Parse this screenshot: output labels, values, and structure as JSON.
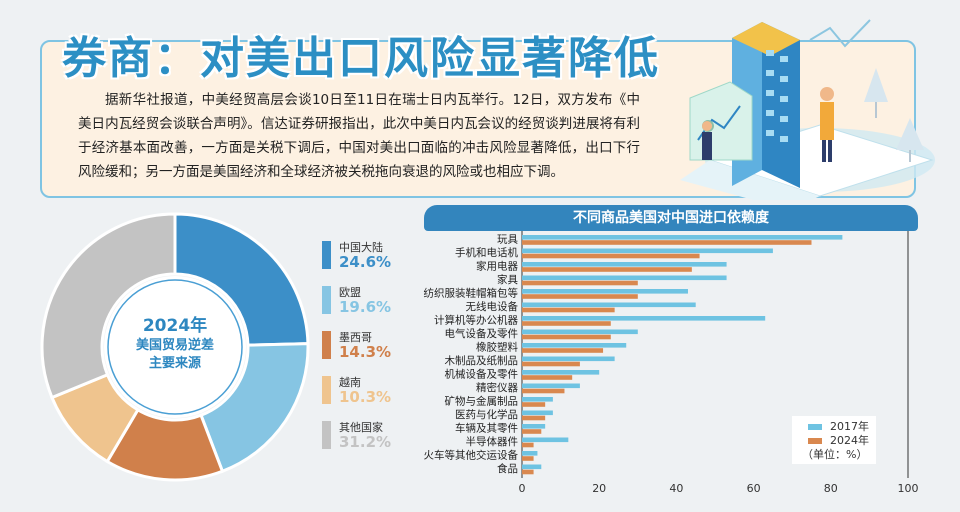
{
  "header": {
    "title": "券商：对美出口风险显著降低",
    "intro": "据新华社报道，中美经贸高层会谈10日至11日在瑞士日内瓦举行。12日，双方发布《中美日内瓦经贸会谈联合声明》。信达证券研报指出，此次中美日内瓦会议的经贸谈判进展将有利于经济基本面改善，一方面是关税下调后，中国对美出口面临的冲击风险显著降低，出口下行风险缓和；另一方面是美国经济和全球经济被关税拖向衰退的风险或也相应下调。"
  },
  "colors": {
    "accent": "#2c8fc4",
    "series_2017": "#6ec3e2",
    "series_2024": "#d9884f"
  },
  "chart_data": [
    {
      "type": "pie",
      "center_label": [
        "2024年",
        "美国贸易逆差",
        "主要来源"
      ],
      "slices": [
        {
          "label": "中国大陆",
          "value": 24.6,
          "display": "24.6%",
          "color": "#3c8fc8"
        },
        {
          "label": "欧盟",
          "value": 19.6,
          "display": "19.6%",
          "color": "#86c5e3"
        },
        {
          "label": "墨西哥",
          "value": 14.3,
          "display": "14.3%",
          "color": "#d0804b"
        },
        {
          "label": "越南",
          "value": 10.3,
          "display": "10.3%",
          "color": "#efc48e"
        },
        {
          "label": "其他国家",
          "value": 31.2,
          "display": "31.2%",
          "color": "#c3c3c3"
        }
      ]
    },
    {
      "type": "bar",
      "orientation": "horizontal",
      "title": "不同商品美国对中国进口依赖度",
      "categories": [
        "玩具",
        "手机和电话机",
        "家用电器",
        "家具",
        "纺织服装鞋帽箱包等",
        "无线电设备",
        "计算机等办公机器",
        "电气设备及零件",
        "橡胶塑料",
        "木制品及纸制品",
        "机械设备及零件",
        "精密仪器",
        "矿物与金属制品",
        "医药与化学品",
        "车辆及其零件",
        "半导体器件",
        "火车等其他交运设备",
        "食品"
      ],
      "series": [
        {
          "name": "2017年",
          "values": [
            83,
            65,
            53,
            53,
            43,
            45,
            63,
            30,
            27,
            24,
            20,
            15,
            8,
            8,
            6,
            12,
            4,
            5
          ]
        },
        {
          "name": "2024年",
          "values": [
            75,
            46,
            44,
            30,
            30,
            24,
            23,
            23,
            21,
            15,
            13,
            11,
            6,
            6,
            5,
            3,
            3,
            3
          ]
        }
      ],
      "xlim": [
        0,
        100
      ],
      "xticks": [
        "0",
        "20",
        "40",
        "60",
        "80",
        "100"
      ],
      "unit_note": "（单位：%）"
    }
  ]
}
